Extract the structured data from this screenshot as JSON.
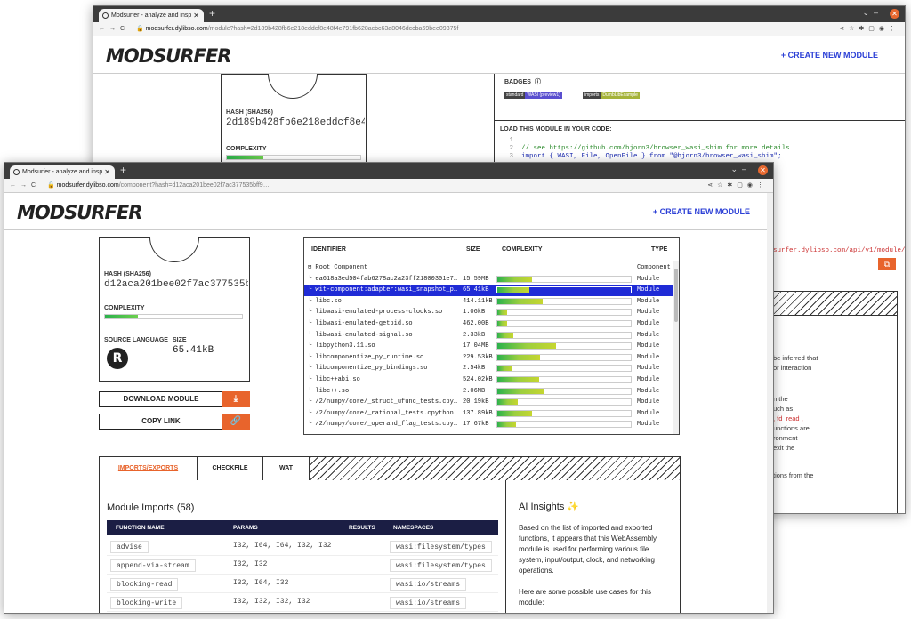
{
  "back_window": {
    "tab_title": "Modsurfer - analyze and insp",
    "url_host": "modsurfer.dylibso.com",
    "url_path": "/module?hash=2d189b428fb6e218eddcf8e48f4e791fb628acbc63a8046dccba69bee09375f",
    "logo": "MODSURFER",
    "create_link": "+ CREATE NEW MODULE",
    "hash_label": "HASH (SHA256)",
    "hash_value": "2d189b428fb6e218eddcf8e48f4e…",
    "complexity_label": "COMPLEXITY",
    "complexity_fill": 0.27,
    "badges_label": "BADGES",
    "badge1_key": "standard",
    "badge1_value": "WASI (preview1)",
    "badge2_key": "imports",
    "badge2_value": "DumbLibExample",
    "load_label": "LOAD THIS MODULE IN YOUR CODE:",
    "code": [
      {
        "n": "1",
        "text": ""
      },
      {
        "n": "2",
        "text": "// see https://github.com/bjorn3/browser_wasi_shim for more details"
      },
      {
        "n": "3",
        "text": "import { WASI, File, OpenFile } from \"@bjorn3/browser_wasi_shim\";"
      }
    ],
    "api_url": "surfer.dylibso.com/api/v1/module/2",
    "side_text": [
      "be inferred that",
      "or interaction",
      "n the",
      "uch as",
      ", fd_read ,",
      "unctions are",
      "ronment",
      "exit the",
      "tions from the"
    ]
  },
  "front_window": {
    "tab_title": "Modsurfer - analyze and insp",
    "url_host": "modsurfer.dylibso.com",
    "url_path": "/component?hash=d12aca201bee02f7ac377535bff9…",
    "logo": "MODSURFER",
    "create_link": "+ CREATE NEW MODULE",
    "hash_label": "HASH (SHA256)",
    "hash_value": "d12aca201bee02f7ac377535bff9…",
    "complexity_label": "COMPLEXITY",
    "complexity_fill": 0.24,
    "source_language_label": "SOURCE LANGUAGE",
    "size_label": "SIZE",
    "size_value": "65.41kB",
    "download_label": "DOWNLOAD MODULE",
    "copy_label": "COPY LINK",
    "table": {
      "headers": {
        "identifier": "IDENTIFIER",
        "size": "SIZE",
        "complexity": "COMPLEXITY",
        "type": "TYPE"
      },
      "rows": [
        {
          "id": "Root Component",
          "size": "",
          "cx": 0,
          "type": "Component",
          "root": true
        },
        {
          "id": "ea618a3ed504fab6278ac2a23ff21800301e7…",
          "size": "15.59MB",
          "cx": 0.26,
          "type": "Module"
        },
        {
          "id": "wit-component:adapter:wasi_snapshot_p…",
          "size": "65.41kB",
          "cx": 0.24,
          "type": "Module",
          "selected": true
        },
        {
          "id": "libc.so",
          "size": "414.11kB",
          "cx": 0.34,
          "type": "Module"
        },
        {
          "id": "libwasi-emulated-process-clocks.so",
          "size": "1.06kB",
          "cx": 0.07,
          "type": "Module"
        },
        {
          "id": "libwasi-emulated-getpid.so",
          "size": "462.00B",
          "cx": 0.07,
          "type": "Module"
        },
        {
          "id": "libwasi-emulated-signal.so",
          "size": "2.33kB",
          "cx": 0.12,
          "type": "Module"
        },
        {
          "id": "libpython3.11.so",
          "size": "17.04MB",
          "cx": 0.44,
          "type": "Module"
        },
        {
          "id": "libcomponentize_py_runtime.so",
          "size": "229.53kB",
          "cx": 0.32,
          "type": "Module"
        },
        {
          "id": "libcomponentize_py_bindings.so",
          "size": "2.54kB",
          "cx": 0.11,
          "type": "Module"
        },
        {
          "id": "libc++abi.so",
          "size": "524.02kB",
          "cx": 0.31,
          "type": "Module"
        },
        {
          "id": "libc++.so",
          "size": "2.06MB",
          "cx": 0.35,
          "type": "Module"
        },
        {
          "id": "/2/numpy/core/_struct_ufunc_tests.cpy…",
          "size": "20.19kB",
          "cx": 0.15,
          "type": "Module"
        },
        {
          "id": "/2/numpy/core/_rational_tests.cpython…",
          "size": "137.89kB",
          "cx": 0.26,
          "type": "Module"
        },
        {
          "id": "/2/numpy/core/_operand_flag_tests.cpy…",
          "size": "17.67kB",
          "cx": 0.14,
          "type": "Module"
        }
      ]
    },
    "tabs": [
      "IMPORTS/EXPORTS",
      "CHECKFILE",
      "WAT"
    ],
    "imports_title": "Module Imports (58)",
    "imports_headers": {
      "fn": "FUNCTION NAME",
      "params": "PARAMS",
      "results": "RESULTS",
      "ns": "NAMESPACES"
    },
    "imports": [
      {
        "fn": "advise",
        "params": "I32, I64, I64, I32, I32",
        "ns": "wasi:filesystem/types"
      },
      {
        "fn": "append-via-stream",
        "params": "I32, I32",
        "ns": "wasi:filesystem/types"
      },
      {
        "fn": "blocking-read",
        "params": "I32, I64, I32",
        "ns": "wasi:io/streams"
      },
      {
        "fn": "blocking-write",
        "params": "I32, I32, I32, I32",
        "ns": "wasi:io/streams"
      }
    ],
    "insights_title": "AI Insights ✨",
    "insights_p1": "Based on the list of imported and exported functions, it appears that this WebAssembly module is used for performing various file system, input/output, clock, and networking operations.",
    "insights_p2": "Here are some possible use cases for this module:"
  },
  "colors": {
    "accent": "#e8642c",
    "brand_blue": "#2b3fd6",
    "selected_row": "#1f2bd6",
    "header_navy": "#1b1e44"
  }
}
